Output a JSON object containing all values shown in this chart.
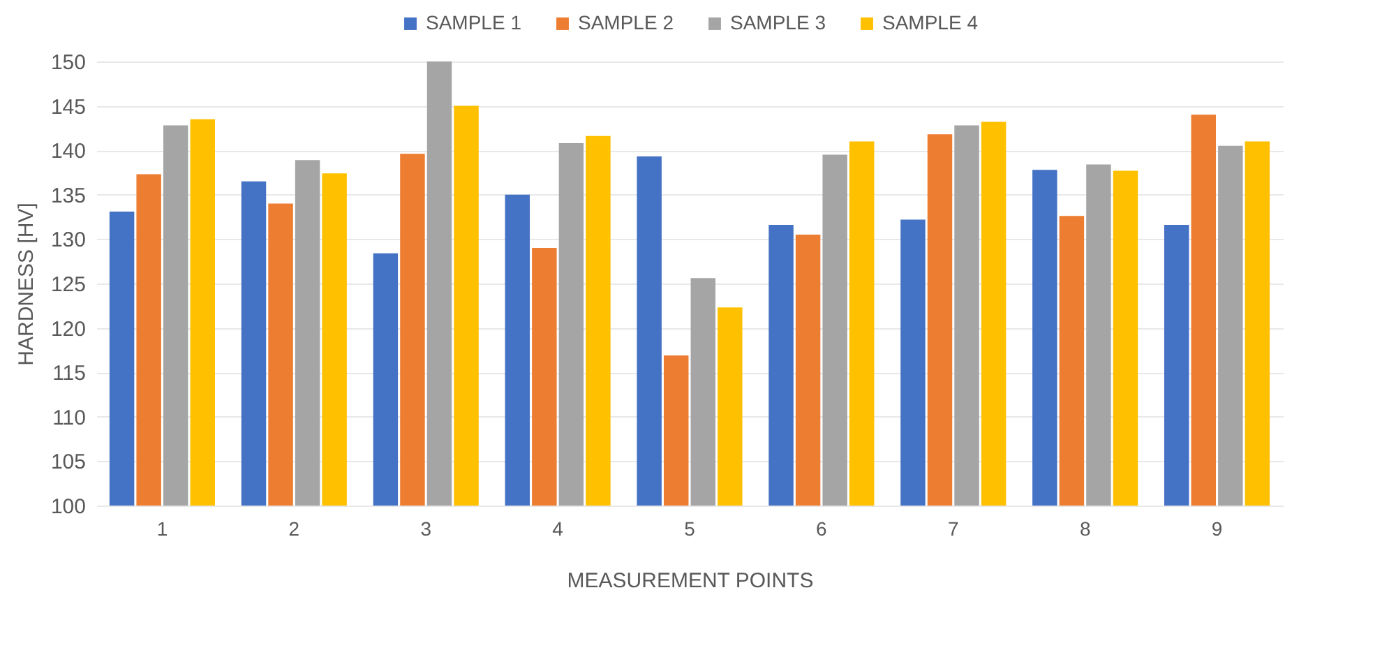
{
  "chart_data": {
    "type": "bar",
    "xlabel": "MEASUREMENT POINTS",
    "ylabel": "HARDNESS [HV]",
    "categories": [
      "1",
      "2",
      "3",
      "4",
      "5",
      "6",
      "7",
      "8",
      "9"
    ],
    "series": [
      {
        "name": "SAMPLE 1",
        "color": "#4472c4",
        "values": [
          133.1,
          136.5,
          128.4,
          135,
          139.3,
          131.6,
          132.2,
          137.8,
          131.6
        ]
      },
      {
        "name": "SAMPLE 2",
        "color": "#ed7d31",
        "values": [
          137.3,
          134,
          139.6,
          129,
          116.9,
          130.5,
          141.8,
          132.6,
          144
        ]
      },
      {
        "name": "SAMPLE 3",
        "color": "#a5a5a5",
        "values": [
          142.8,
          138.9,
          150,
          140.8,
          125.6,
          139.5,
          142.8,
          138.4,
          140.5
        ]
      },
      {
        "name": "SAMPLE 4",
        "color": "#ffc000",
        "values": [
          143.5,
          137.4,
          145,
          141.6,
          122.3,
          141,
          143.2,
          137.7,
          141
        ]
      }
    ],
    "ylim": [
      100,
      150
    ],
    "yticks": [
      100,
      105,
      110,
      115,
      120,
      125,
      130,
      135,
      140,
      145,
      150
    ],
    "grid": "y",
    "legend": "top"
  }
}
